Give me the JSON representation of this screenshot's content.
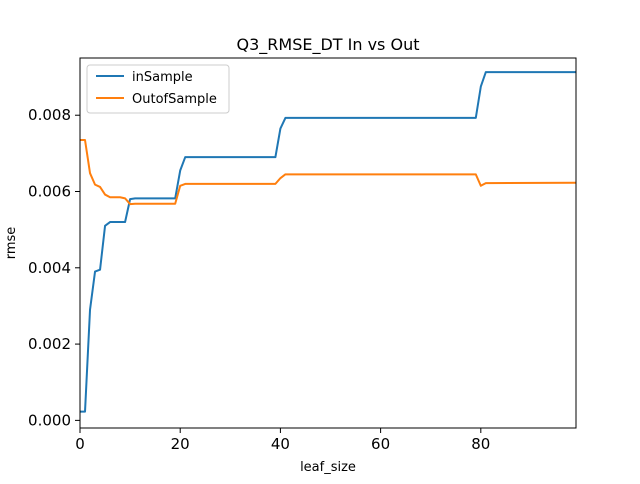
{
  "chart_data": {
    "type": "line",
    "title": "Q3_RMSE_DT In vs Out",
    "xlabel": "leaf_size",
    "ylabel": "rmse",
    "xlim": [
      0,
      99
    ],
    "ylim": [
      -0.0002,
      0.0095
    ],
    "xticks": [
      0,
      20,
      40,
      60,
      80
    ],
    "xtick_labels": [
      "0",
      "20",
      "40",
      "60",
      "80"
    ],
    "yticks": [
      0.0,
      0.002,
      0.004,
      0.006,
      0.008
    ],
    "ytick_labels": [
      "0.000",
      "0.002",
      "0.004",
      "0.006",
      "0.008"
    ],
    "grid": false,
    "legend_position": "top-left",
    "series": [
      {
        "name": "inSample",
        "color": "#1f77b4",
        "points": [
          [
            0,
            0.00023
          ],
          [
            1,
            0.00023
          ],
          [
            2,
            0.0029
          ],
          [
            3,
            0.0039
          ],
          [
            4,
            0.00395
          ],
          [
            5,
            0.0051
          ],
          [
            6,
            0.0052
          ],
          [
            7,
            0.0052
          ],
          [
            8,
            0.0052
          ],
          [
            9,
            0.0052
          ],
          [
            10,
            0.0058
          ],
          [
            11,
            0.00582
          ],
          [
            12,
            0.00582
          ],
          [
            19,
            0.00582
          ],
          [
            20,
            0.00655
          ],
          [
            21,
            0.0069
          ],
          [
            39,
            0.0069
          ],
          [
            40,
            0.00765
          ],
          [
            41,
            0.00793
          ],
          [
            79,
            0.00793
          ],
          [
            80,
            0.00875
          ],
          [
            81,
            0.00913
          ],
          [
            99,
            0.00913
          ]
        ]
      },
      {
        "name": "OutofSample",
        "color": "#ff7f0e",
        "points": [
          [
            0,
            0.00735
          ],
          [
            1,
            0.00735
          ],
          [
            2,
            0.00648
          ],
          [
            3,
            0.00618
          ],
          [
            4,
            0.00612
          ],
          [
            5,
            0.00592
          ],
          [
            6,
            0.00585
          ],
          [
            7,
            0.00585
          ],
          [
            8,
            0.00585
          ],
          [
            9,
            0.00582
          ],
          [
            10,
            0.00567
          ],
          [
            11,
            0.00568
          ],
          [
            12,
            0.00568
          ],
          [
            19,
            0.00568
          ],
          [
            20,
            0.00615
          ],
          [
            21,
            0.0062
          ],
          [
            39,
            0.0062
          ],
          [
            40,
            0.00635
          ],
          [
            41,
            0.00645
          ],
          [
            79,
            0.00645
          ],
          [
            80,
            0.00615
          ],
          [
            81,
            0.00622
          ],
          [
            99,
            0.00623
          ]
        ]
      }
    ]
  }
}
